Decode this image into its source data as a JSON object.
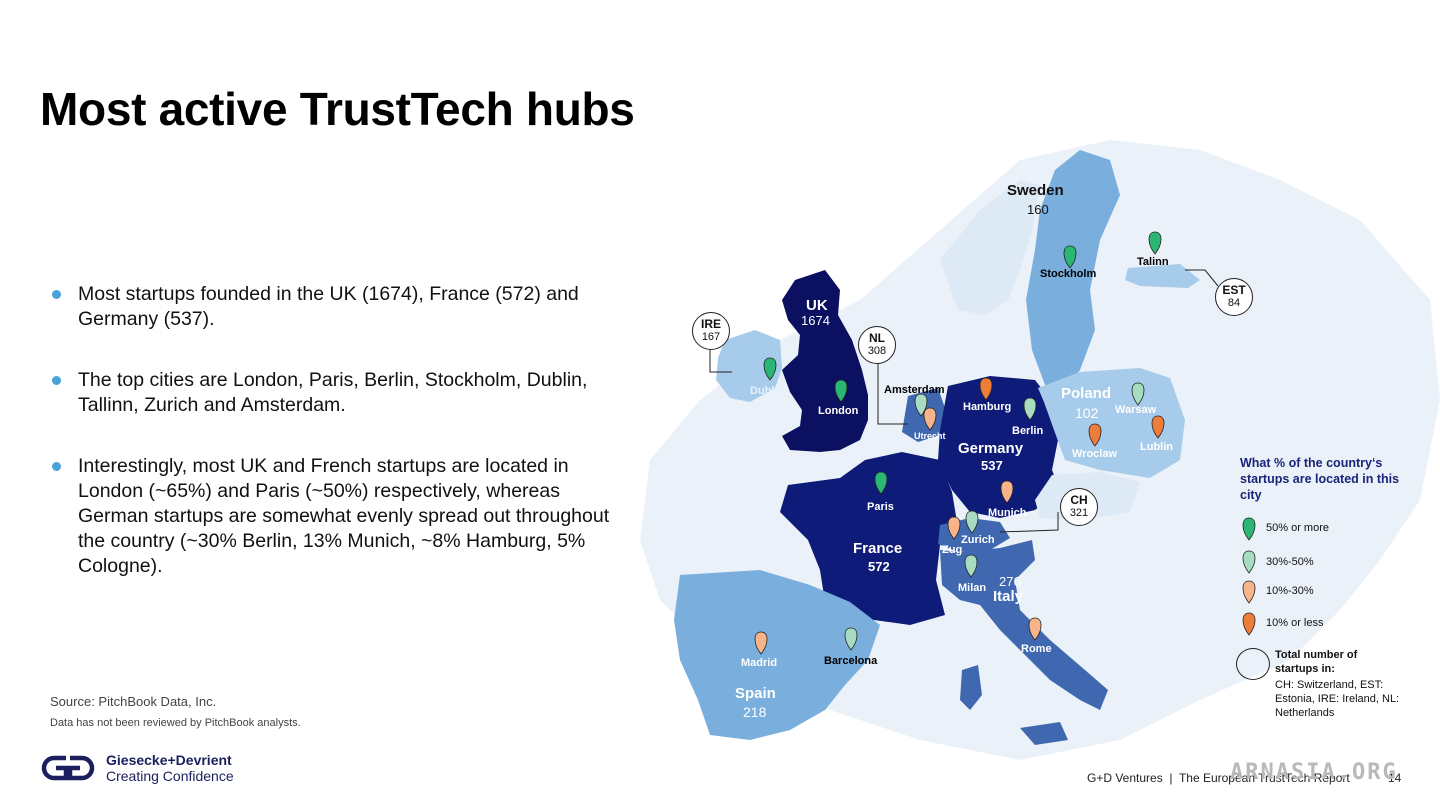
{
  "title": "Most active TrustTech hubs",
  "bullets": [
    "Most startups founded in the UK (1674), France (572) and Germany (537).",
    "The top cities are London, Paris, Berlin, Stockholm, Dublin, Tallinn, Zurich and Amsterdam.",
    "Interestingly, most UK and French startups are located in London (~65%) and Paris (~50%) respectively, whereas German startups are somewhat evenly spread out throughout the country (~30% Berlin, 13% Munich, ~8% Hamburg, 5% Cologne)."
  ],
  "source": "Source: PitchBook Data, Inc.",
  "note": "Data has not been reviewed by PitchBook analysts.",
  "logo": {
    "line1": "Giesecke+Devrient",
    "line2": "Creating Confidence"
  },
  "footer": {
    "text": "G+D Ventures  |  The European TrustTech Report",
    "page": "14"
  },
  "watermark": "ARNASIA.ORG",
  "map": {
    "countries": {
      "sweden": {
        "name": "Sweden",
        "count": "160"
      },
      "uk": {
        "name": "UK",
        "count": "1674"
      },
      "poland": {
        "name": "Poland",
        "count": "102"
      },
      "germany": {
        "name": "Germany",
        "count": "537"
      },
      "france": {
        "name": "France",
        "count": "572"
      },
      "italy": {
        "name": "Italy",
        "count": "276"
      },
      "spain": {
        "name": "Spain",
        "count": "218"
      }
    },
    "bubbles": {
      "ire": {
        "code": "IRE",
        "count": "167"
      },
      "nl": {
        "code": "NL",
        "count": "308"
      },
      "ch": {
        "code": "CH",
        "count": "321"
      },
      "est": {
        "code": "EST",
        "count": "84"
      }
    },
    "cities": {
      "stockholm": "Stockholm",
      "talinn": "Talinn",
      "dublin": "Dublin",
      "london": "London",
      "amsterdam": "Amsterdam",
      "utrecht": "Utrecht",
      "hamburg": "Hamburg",
      "berlin": "Berlin",
      "warsaw": "Warsaw",
      "lublin": "Lublin",
      "wroclaw": "Wroclaw",
      "paris": "Paris",
      "munich": "Munich",
      "zurich": "Zurich",
      "zug": "Zug",
      "milan": "Milan",
      "rome": "Rome",
      "madrid": "Madrid",
      "barcelona": "Barcelona"
    }
  },
  "legend": {
    "title": "What % of the country‘s startups are located in this city",
    "items": [
      {
        "label": "50% or more",
        "color": "#2bb673"
      },
      {
        "label": "30%-50%",
        "color": "#a8dcc0"
      },
      {
        "label": "10%-30%",
        "color": "#f7b48a"
      },
      {
        "label": "10% or less",
        "color": "#ef7d3a"
      }
    ],
    "total_title": "Total number of startups in:",
    "total_desc": "CH: Switzerland, EST: Estonia, IRE: Ireland, NL: Netherlands"
  },
  "colors": {
    "dark_navy": "#0b1060",
    "navy": "#0f1b78",
    "mid_blue": "#3f68b0",
    "light_blue": "#7aaedd",
    "pale_blue": "#a7cbea",
    "background_land": "#eaf1f8",
    "accent": "#4aa3d8"
  }
}
